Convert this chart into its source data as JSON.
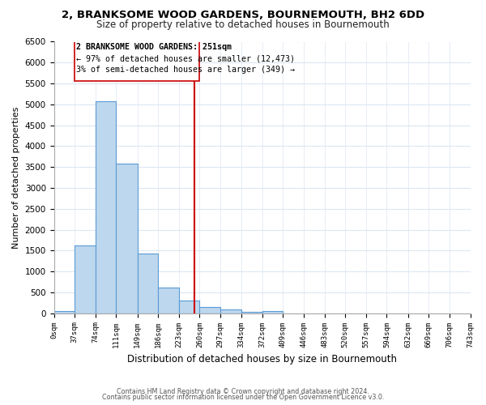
{
  "title": "2, BRANKSOME WOOD GARDENS, BOURNEMOUTH, BH2 6DD",
  "subtitle": "Size of property relative to detached houses in Bournemouth",
  "xlabel": "Distribution of detached houses by size in Bournemouth",
  "ylabel": "Number of detached properties",
  "footer_line1": "Contains HM Land Registry data © Crown copyright and database right 2024.",
  "footer_line2": "Contains public sector information licensed under the Open Government Licence v3.0.",
  "bar_edges": [
    0,
    37,
    74,
    111,
    149,
    186,
    223,
    260,
    297,
    334,
    372,
    409,
    446,
    483,
    520,
    557,
    594,
    632,
    669,
    706,
    743
  ],
  "bar_heights": [
    60,
    1630,
    5070,
    3580,
    1420,
    615,
    300,
    155,
    90,
    30,
    50,
    0,
    0,
    0,
    0,
    0,
    0,
    0,
    0,
    0
  ],
  "bar_color": "#bdd7ee",
  "bar_edgecolor": "#5b9bd5",
  "marker_x": 251,
  "marker_color": "#cc0000",
  "ylim": [
    0,
    6500
  ],
  "xlim": [
    0,
    743
  ],
  "annotation_text_line1": "2 BRANKSOME WOOD GARDENS: 251sqm",
  "annotation_text_line2": "← 97% of detached houses are smaller (12,473)",
  "annotation_text_line3": "3% of semi-detached houses are larger (349) →",
  "tick_labels": [
    "0sqm",
    "37sqm",
    "74sqm",
    "111sqm",
    "149sqm",
    "186sqm",
    "223sqm",
    "260sqm",
    "297sqm",
    "334sqm",
    "372sqm",
    "409sqm",
    "446sqm",
    "483sqm",
    "520sqm",
    "557sqm",
    "594sqm",
    "632sqm",
    "669sqm",
    "706sqm",
    "743sqm"
  ],
  "background_color": "#ffffff",
  "grid_color": "#dce6f1",
  "title_fontsize": 9.5,
  "subtitle_fontsize": 8.5
}
